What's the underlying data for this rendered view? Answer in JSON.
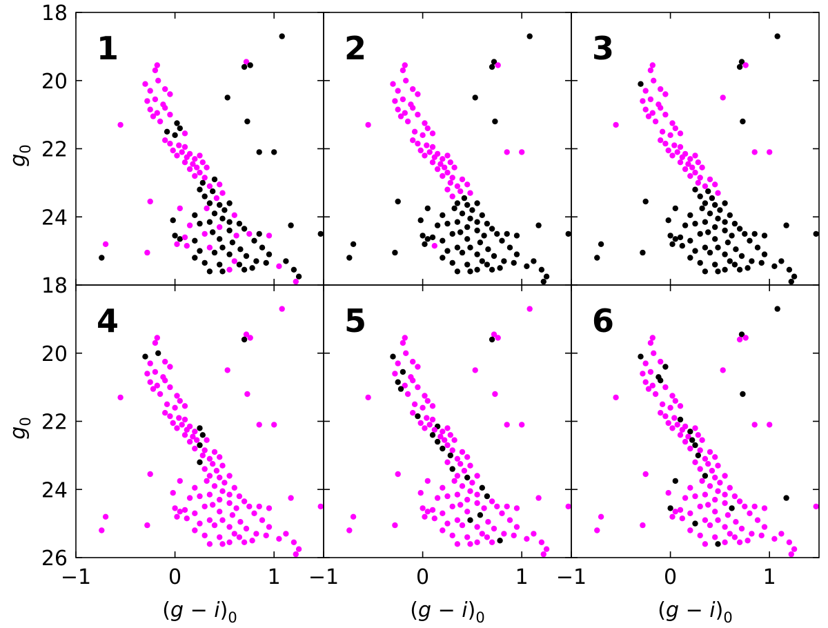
{
  "chart_data": {
    "type": "scatter",
    "title": "",
    "xlabel": "(g − i)0",
    "ylabel": "g0",
    "xlim": [
      -1,
      1.5
    ],
    "ylim": [
      26,
      18
    ],
    "x_ticks": [
      -1,
      0,
      1
    ],
    "x_tick_labels": [
      "−1",
      "0",
      "1"
    ],
    "y_ticks": [
      18,
      20,
      22,
      24,
      26
    ],
    "y_tick_labels": [
      "18",
      "20",
      "22",
      "24",
      "26"
    ],
    "colors": {
      "magenta": "#ff00ff",
      "black": "#000000"
    },
    "base_stars": [
      [
        0.72,
        19.45
      ],
      [
        0.76,
        19.55
      ],
      [
        0.7,
        19.6
      ],
      [
        1.08,
        18.7
      ],
      [
        0.53,
        20.5
      ],
      [
        0.73,
        21.2
      ],
      [
        0.85,
        22.1
      ],
      [
        1.0,
        22.1
      ],
      [
        -0.18,
        19.55
      ],
      [
        -0.2,
        19.7
      ],
      [
        -0.17,
        20.0
      ],
      [
        -0.3,
        20.1
      ],
      [
        -0.1,
        20.25
      ],
      [
        -0.25,
        20.3
      ],
      [
        -0.05,
        20.4
      ],
      [
        -0.2,
        20.55
      ],
      [
        -0.28,
        20.6
      ],
      [
        -0.12,
        20.7
      ],
      [
        -0.25,
        20.85
      ],
      [
        -0.18,
        20.95
      ],
      [
        -0.1,
        20.8
      ],
      [
        -0.05,
        21.0
      ],
      [
        -0.22,
        21.05
      ],
      [
        -0.15,
        21.2
      ],
      [
        -0.55,
        21.3
      ],
      [
        0.02,
        21.25
      ],
      [
        0.05,
        21.4
      ],
      [
        -0.08,
        21.5
      ],
      [
        0.0,
        21.6
      ],
      [
        0.1,
        21.55
      ],
      [
        -0.1,
        21.75
      ],
      [
        -0.05,
        21.85
      ],
      [
        0.04,
        21.9
      ],
      [
        0.1,
        21.95
      ],
      [
        -0.02,
        22.05
      ],
      [
        0.07,
        22.1
      ],
      [
        0.15,
        22.15
      ],
      [
        0.02,
        22.2
      ],
      [
        0.12,
        22.25
      ],
      [
        0.2,
        22.3
      ],
      [
        0.25,
        22.2
      ],
      [
        0.1,
        22.4
      ],
      [
        0.18,
        22.45
      ],
      [
        0.28,
        22.4
      ],
      [
        0.22,
        22.55
      ],
      [
        0.15,
        22.6
      ],
      [
        0.32,
        22.55
      ],
      [
        0.25,
        22.7
      ],
      [
        0.2,
        22.8
      ],
      [
        0.3,
        22.85
      ],
      [
        0.4,
        22.9
      ],
      [
        0.28,
        23.0
      ],
      [
        0.35,
        23.1
      ],
      [
        0.45,
        23.05
      ],
      [
        0.25,
        23.2
      ],
      [
        0.38,
        23.25
      ],
      [
        0.48,
        23.3
      ],
      [
        0.3,
        23.4
      ],
      [
        0.42,
        23.45
      ],
      [
        0.35,
        23.6
      ],
      [
        0.45,
        23.65
      ],
      [
        0.55,
        23.6
      ],
      [
        -0.25,
        23.55
      ],
      [
        0.32,
        23.75
      ],
      [
        0.5,
        23.8
      ],
      [
        0.4,
        23.9
      ],
      [
        0.05,
        23.75
      ],
      [
        0.2,
        23.95
      ],
      [
        0.6,
        23.95
      ],
      [
        0.48,
        24.05
      ],
      [
        0.55,
        24.15
      ],
      [
        0.35,
        24.15
      ],
      [
        0.25,
        24.2
      ],
      [
        0.65,
        24.2
      ],
      [
        -0.02,
        24.1
      ],
      [
        0.15,
        24.25
      ],
      [
        0.45,
        24.3
      ],
      [
        0.7,
        24.35
      ],
      [
        0.55,
        24.4
      ],
      [
        0.38,
        24.45
      ],
      [
        0.75,
        24.5
      ],
      [
        0.85,
        24.5
      ],
      [
        0.62,
        24.55
      ],
      [
        0.3,
        24.5
      ],
      [
        0.0,
        24.55
      ],
      [
        0.05,
        24.65
      ],
      [
        0.1,
        24.6
      ],
      [
        0.2,
        24.7
      ],
      [
        0.45,
        24.65
      ],
      [
        0.58,
        24.75
      ],
      [
        0.8,
        24.7
      ],
      [
        0.95,
        24.55
      ],
      [
        1.17,
        24.25
      ],
      [
        1.47,
        24.5
      ],
      [
        -0.7,
        24.8
      ],
      [
        0.02,
        24.8
      ],
      [
        0.12,
        24.85
      ],
      [
        0.35,
        24.9
      ],
      [
        0.48,
        24.9
      ],
      [
        0.66,
        24.95
      ],
      [
        0.88,
        24.9
      ],
      [
        -0.28,
        25.05
      ],
      [
        0.25,
        25.0
      ],
      [
        0.4,
        25.05
      ],
      [
        0.55,
        25.1
      ],
      [
        0.72,
        25.15
      ],
      [
        -0.74,
        25.2
      ],
      [
        0.95,
        25.1
      ],
      [
        0.2,
        25.2
      ],
      [
        0.6,
        25.3
      ],
      [
        0.82,
        25.3
      ],
      [
        0.3,
        25.35
      ],
      [
        0.92,
        25.35
      ],
      [
        0.45,
        25.4
      ],
      [
        0.65,
        25.4
      ],
      [
        1.12,
        25.3
      ],
      [
        0.78,
        25.5
      ],
      [
        0.35,
        25.6
      ],
      [
        0.48,
        25.6
      ],
      [
        0.55,
        25.55
      ],
      [
        0.7,
        25.55
      ],
      [
        1.05,
        25.45
      ],
      [
        1.2,
        25.55
      ],
      [
        1.25,
        25.75
      ],
      [
        1.22,
        25.9
      ]
    ],
    "panels": [
      {
        "label": "1",
        "magenta": [
          0,
          8,
          9,
          10,
          11,
          12,
          13,
          14,
          15,
          16,
          17,
          18,
          19,
          20,
          21,
          22,
          23,
          24,
          29,
          30,
          31,
          32,
          33,
          34,
          35,
          36,
          37,
          38,
          39,
          40,
          41,
          42,
          43,
          44,
          45,
          46,
          47,
          48,
          49,
          52,
          53,
          56,
          58,
          62,
          63,
          66,
          68,
          75,
          76,
          80,
          82,
          83,
          86,
          91,
          94,
          95,
          96,
          97,
          101,
          109,
          119,
          121,
          124,
          125,
          126
        ]
      },
      {
        "label": "2",
        "magenta": [
          1,
          6,
          7,
          8,
          9,
          10,
          11,
          12,
          13,
          14,
          15,
          16,
          17,
          18,
          19,
          20,
          21,
          22,
          23,
          24,
          25,
          26,
          27,
          28,
          29,
          30,
          31,
          32,
          33,
          34,
          35,
          36,
          37,
          38,
          39,
          40,
          41,
          42,
          43,
          44,
          45,
          46,
          47,
          48,
          49,
          50,
          51,
          52,
          53,
          54,
          55,
          56,
          57,
          96
        ]
      },
      {
        "label": "3",
        "magenta": [
          1,
          4,
          6,
          7,
          8,
          9,
          10,
          12,
          13,
          14,
          15,
          16,
          17,
          18,
          19,
          20,
          21,
          22,
          23,
          24,
          25,
          26,
          27,
          28,
          29,
          30,
          31,
          32,
          33,
          34,
          35,
          36,
          37,
          38,
          39,
          40,
          41,
          42,
          43,
          44,
          45,
          46,
          47,
          48,
          49,
          50,
          51,
          52,
          53,
          56
        ]
      },
      {
        "label": "4",
        "magenta": [
          0,
          1,
          3,
          4,
          5,
          6,
          7,
          8,
          9,
          12,
          13,
          14,
          15,
          16,
          17,
          18,
          19,
          20,
          21,
          22,
          23,
          24,
          25,
          26,
          27,
          28,
          29,
          30,
          31,
          32,
          33,
          34,
          35,
          36,
          37,
          38,
          39,
          41,
          42,
          44,
          45,
          46,
          48,
          49,
          50,
          51,
          52,
          53,
          55,
          56,
          57,
          58,
          59,
          60,
          61,
          62,
          63,
          64,
          65,
          66,
          67,
          68,
          69,
          70,
          71,
          72,
          73,
          74,
          75,
          76,
          77,
          78,
          79,
          80,
          81,
          82,
          83,
          84,
          85,
          86,
          87,
          88,
          89,
          90,
          91,
          92,
          93,
          94,
          95,
          96,
          97,
          98,
          99,
          100,
          101,
          102,
          103,
          104,
          105,
          106,
          107,
          108,
          109,
          110,
          111,
          112,
          113,
          114,
          115,
          116,
          117,
          118,
          119,
          120,
          121,
          122,
          123,
          124,
          125,
          126
        ]
      },
      {
        "label": "5",
        "exclude": [
          2,
          11,
          15,
          18,
          22,
          31,
          36,
          41,
          45,
          48,
          51,
          57,
          60,
          68,
          73,
          89,
          98,
          116,
          125
        ]
      },
      {
        "label": "6",
        "exclude": [
          0,
          3,
          5,
          11,
          14,
          17,
          20,
          33,
          39,
          44,
          47,
          51,
          59,
          66,
          82,
          84,
          92,
          102,
          118
        ]
      }
    ]
  }
}
